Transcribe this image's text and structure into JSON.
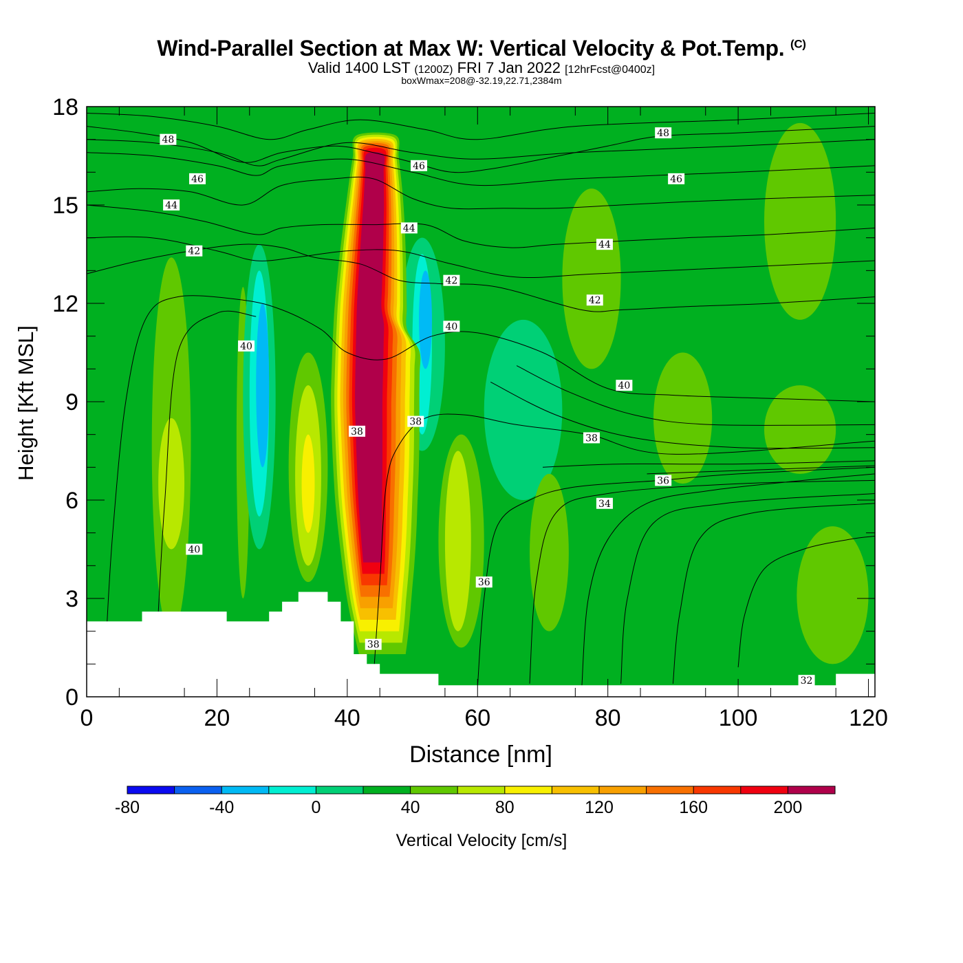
{
  "header": {
    "title": "Wind-Parallel Section at Max W: Vertical Velocity & Pot.Temp.",
    "copyright_mark": "(C)",
    "valid_prefix": "Valid 1400 LST",
    "valid_zulu": "(1200Z)",
    "valid_date": "FRI 7 Jan 2022",
    "forecast_info": "[12hrFcst@0400z]",
    "box_wmax": "boxWmax=208@-32.19,22.71,2384m"
  },
  "colorbar": {
    "title": "Vertical Velocity [cm/s]",
    "colors": [
      "#0a0af0",
      "#0a60f0",
      "#00baf5",
      "#00efd2",
      "#00d076",
      "#00b020",
      "#60c800",
      "#b8e800",
      "#f8f000",
      "#f8c000",
      "#f8a000",
      "#f87000",
      "#f83800",
      "#f00010",
      "#b0004a"
    ],
    "tick_labels": [
      "-80",
      "-40",
      "0",
      "40",
      "80",
      "120",
      "160",
      "200"
    ]
  },
  "chart_data": {
    "type": "heatmap",
    "xlabel": "Distance [nm]",
    "ylabel": "Height [Kft MSL]",
    "xlim": [
      0,
      121
    ],
    "ylim": [
      0,
      18
    ],
    "x_ticks": [
      0,
      20,
      40,
      60,
      80,
      100,
      120
    ],
    "y_ticks": [
      0,
      3,
      6,
      9,
      12,
      15,
      18
    ],
    "grid": false,
    "fill_variable": "Vertical Velocity [cm/s]",
    "contour_variable": "Pot.Temp.",
    "background_level_cm_s": 0,
    "velocity_features": [
      {
        "x": [
          10,
          16
        ],
        "y": [
          1.9,
          13.4
        ],
        "w_cm_s": 20
      },
      {
        "x": [
          11,
          15
        ],
        "y": [
          4.5,
          8.5
        ],
        "w_cm_s": 40
      },
      {
        "x": [
          23,
          25
        ],
        "y": [
          3,
          12.5
        ],
        "w_cm_s": 20
      },
      {
        "x": [
          24,
          29
        ],
        "y": [
          4.5,
          13.8
        ],
        "w_cm_s": -20
      },
      {
        "x": [
          25,
          28
        ],
        "y": [
          5.5,
          13
        ],
        "w_cm_s": -40
      },
      {
        "x": [
          26,
          28
        ],
        "y": [
          7,
          12
        ],
        "w_cm_s": -60
      },
      {
        "x": [
          31,
          37
        ],
        "y": [
          3.5,
          10.5
        ],
        "w_cm_s": 20
      },
      {
        "x": [
          32,
          36
        ],
        "y": [
          4,
          9.5
        ],
        "w_cm_s": 40
      },
      {
        "x": [
          33,
          35
        ],
        "y": [
          5,
          8
        ],
        "w_cm_s": 60
      },
      {
        "x": [
          48,
          55
        ],
        "y": [
          7.5,
          14
        ],
        "w_cm_s": -20
      },
      {
        "x": [
          50,
          53
        ],
        "y": [
          8,
          13.5
        ],
        "w_cm_s": -40
      },
      {
        "x": [
          51,
          53
        ],
        "y": [
          10,
          13
        ],
        "w_cm_s": -60
      },
      {
        "x": [
          54,
          61
        ],
        "y": [
          1.5,
          8
        ],
        "w_cm_s": 20
      },
      {
        "x": [
          55,
          59
        ],
        "y": [
          2,
          7.5
        ],
        "w_cm_s": 40
      },
      {
        "x": [
          61,
          73
        ],
        "y": [
          6,
          11.5
        ],
        "w_cm_s": -20
      },
      {
        "x": [
          68,
          74
        ],
        "y": [
          2,
          6.8
        ],
        "w_cm_s": 20
      },
      {
        "x": [
          73,
          82
        ],
        "y": [
          10,
          15.5
        ],
        "w_cm_s": 20
      },
      {
        "x": [
          87,
          96
        ],
        "y": [
          6.5,
          10.5
        ],
        "w_cm_s": 20
      },
      {
        "x": [
          104,
          115
        ],
        "y": [
          6.8,
          9.5
        ],
        "w_cm_s": 20
      },
      {
        "x": [
          109,
          120
        ],
        "y": [
          1,
          5.2
        ],
        "w_cm_s": 20
      },
      {
        "x": [
          104,
          115
        ],
        "y": [
          11.5,
          17.5
        ],
        "w_cm_s": 20
      }
    ],
    "updraft_core": {
      "w_max_cm_s": 208,
      "top_kft": 17.2,
      "levels_cm_s": [
        20,
        40,
        60,
        80,
        100,
        120,
        140,
        160,
        180,
        200
      ],
      "band_width_kft": [
        0.4,
        0.75,
        1.1,
        1.45,
        1.8,
        2.1,
        2.45,
        2.9,
        3.6,
        5.2
      ],
      "axis": [
        [
          44,
          1.3
        ],
        [
          43.2,
          3
        ],
        [
          42.5,
          6
        ],
        [
          42.2,
          9
        ],
        [
          42.5,
          12
        ],
        [
          43.2,
          15
        ],
        [
          43.5,
          17.2
        ]
      ],
      "band_halfwidth_nm": [
        6.3,
        5.6,
        5,
        4.4,
        3.8,
        3.2,
        2.6,
        2.0,
        1.4,
        0.8
      ]
    },
    "terrain_kft": [
      [
        0,
        2.3
      ],
      [
        8.5,
        2.3
      ],
      [
        8.5,
        2.6
      ],
      [
        21.5,
        2.6
      ],
      [
        21.5,
        2.3
      ],
      [
        28,
        2.3
      ],
      [
        28,
        2.6
      ],
      [
        30,
        2.6
      ],
      [
        30,
        2.9
      ],
      [
        32.5,
        2.9
      ],
      [
        32.5,
        3.2
      ],
      [
        37,
        3.2
      ],
      [
        37,
        2.9
      ],
      [
        39,
        2.9
      ],
      [
        39,
        2.3
      ],
      [
        41,
        2.3
      ],
      [
        41,
        1.3
      ],
      [
        43,
        1.3
      ],
      [
        43,
        1.0
      ],
      [
        45,
        1.0
      ],
      [
        45,
        0.7
      ],
      [
        54,
        0.7
      ],
      [
        54,
        0.35
      ],
      [
        115,
        0.35
      ],
      [
        115,
        0.7
      ],
      [
        121,
        0.7
      ]
    ],
    "theta_contours": [
      {
        "label": "32",
        "points": [
          [
            100,
            0.9
          ],
          [
            101,
            2.5
          ],
          [
            104,
            3.9
          ],
          [
            110,
            4.5
          ],
          [
            117,
            4.8
          ],
          [
            121,
            4.9
          ]
        ],
        "label_at": [
          110.5,
          0.5
        ]
      },
      {
        "label": "34",
        "points": [
          [
            76,
            0.3
          ],
          [
            77,
            3
          ],
          [
            80,
            4.8
          ],
          [
            86,
            5.9
          ],
          [
            96,
            6.3
          ],
          [
            110,
            6.6
          ],
          [
            121,
            6.8
          ]
        ],
        "label_at": [
          79.5,
          5.9
        ]
      },
      {
        "label": "36",
        "points": [
          [
            60,
            0.3
          ],
          [
            61,
            3
          ],
          [
            63,
            5.2
          ],
          [
            68,
            6.0
          ],
          [
            75,
            6.4
          ],
          [
            88,
            6.6
          ],
          [
            100,
            6.8
          ],
          [
            121,
            7.0
          ]
        ],
        "label_at": [
          61,
          3.5
        ]
      },
      {
        "label": "38",
        "points": [
          [
            44,
            0.5
          ],
          [
            45,
            3.5
          ],
          [
            46,
            6.5
          ],
          [
            48,
            7.7
          ],
          [
            52,
            8.5
          ],
          [
            58,
            8.6
          ],
          [
            66,
            8.3
          ],
          [
            77,
            8.0
          ],
          [
            90,
            7.4
          ],
          [
            121,
            7.8
          ]
        ],
        "label_at": [
          50.5,
          8.4
        ]
      },
      {
        "label": "40",
        "points": [
          [
            3,
            1.8
          ],
          [
            4,
            5
          ],
          [
            6,
            9
          ],
          [
            9,
            11.5
          ],
          [
            14,
            12.2
          ],
          [
            24,
            12.1
          ],
          [
            30,
            11.8
          ],
          [
            36,
            11.2
          ],
          [
            40,
            10.5
          ],
          [
            46,
            10.3
          ],
          [
            53,
            11.0
          ],
          [
            60,
            11.1
          ],
          [
            70,
            10.5
          ],
          [
            80,
            9.4
          ],
          [
            90,
            9.2
          ],
          [
            105,
            9.1
          ],
          [
            121,
            9.0
          ]
        ],
        "label_at": [
          24.5,
          10.7
        ]
      },
      {
        "label": "42",
        "points": [
          [
            0,
            12.9
          ],
          [
            8,
            13.3
          ],
          [
            16,
            13.6
          ],
          [
            24,
            13.8
          ],
          [
            30,
            13.7
          ],
          [
            35,
            13.4
          ],
          [
            42,
            13.2
          ],
          [
            48,
            12.7
          ],
          [
            54,
            12.6
          ],
          [
            63,
            12.5
          ],
          [
            76,
            11.8
          ],
          [
            82,
            11.8
          ],
          [
            92,
            11.9
          ],
          [
            105,
            12.0
          ],
          [
            121,
            12.2
          ]
        ],
        "label_at": [
          16.5,
          13.6
        ]
      },
      {
        "label": "44",
        "points": [
          [
            0,
            15.0
          ],
          [
            10,
            14.8
          ],
          [
            18,
            14.5
          ],
          [
            26,
            14.1
          ],
          [
            30,
            14.3
          ],
          [
            36,
            14.4
          ],
          [
            44,
            14.4
          ],
          [
            52,
            14.4
          ],
          [
            58,
            13.9
          ],
          [
            65,
            13.7
          ],
          [
            72,
            13.8
          ],
          [
            82,
            13.9
          ],
          [
            92,
            14.0
          ],
          [
            105,
            14.1
          ],
          [
            121,
            14.3
          ]
        ],
        "label_at": [
          13,
          15.0
        ]
      },
      {
        "label": "46",
        "points": [
          [
            0,
            15.4
          ],
          [
            8,
            15.5
          ],
          [
            16,
            15.4
          ],
          [
            24,
            15.0
          ],
          [
            30,
            15.6
          ],
          [
            38,
            15.8
          ],
          [
            44,
            15.8
          ],
          [
            50,
            15.2
          ],
          [
            56,
            14.9
          ],
          [
            64,
            14.9
          ],
          [
            72,
            14.9
          ],
          [
            82,
            15.0
          ],
          [
            92,
            15.1
          ],
          [
            105,
            15.2
          ],
          [
            121,
            15.3
          ]
        ],
        "label_at": [
          17,
          15.8
        ]
      },
      {
        "label": "48",
        "points": [
          [
            0,
            17.4
          ],
          [
            8,
            17.2
          ],
          [
            16,
            16.9
          ],
          [
            24,
            16.3
          ],
          [
            30,
            16.6
          ],
          [
            38,
            16.8
          ],
          [
            44,
            16.6
          ],
          [
            50,
            16.3
          ],
          [
            56,
            16.0
          ],
          [
            62,
            16.1
          ],
          [
            70,
            16.4
          ],
          [
            80,
            16.8
          ],
          [
            88,
            17.1
          ],
          [
            100,
            17.2
          ],
          [
            121,
            17.4
          ]
        ],
        "label_at": [
          12.5,
          17.0
        ]
      }
    ],
    "extra_theta_labels": [
      {
        "label": "48",
        "at": [
          88.5,
          17.2
        ]
      },
      {
        "label": "46",
        "at": [
          51,
          16.2
        ]
      },
      {
        "label": "46",
        "at": [
          90.5,
          15.8
        ]
      },
      {
        "label": "44",
        "at": [
          49.5,
          14.3
        ]
      },
      {
        "label": "44",
        "at": [
          79.5,
          13.8
        ]
      },
      {
        "label": "42",
        "at": [
          56,
          12.7
        ]
      },
      {
        "label": "42",
        "at": [
          78,
          12.1
        ]
      },
      {
        "label": "40",
        "at": [
          56,
          11.3
        ]
      },
      {
        "label": "40",
        "at": [
          82.5,
          9.5
        ]
      },
      {
        "label": "40",
        "at": [
          16.5,
          4.5
        ]
      },
      {
        "label": "38",
        "at": [
          41.5,
          8.1
        ]
      },
      {
        "label": "38",
        "at": [
          44,
          1.6
        ]
      },
      {
        "label": "38",
        "at": [
          77.5,
          7.9
        ]
      },
      {
        "label": "36",
        "at": [
          88.5,
          6.6
        ]
      }
    ],
    "extra_theta_lines": [
      [
        [
          0,
          16.6
        ],
        [
          10,
          16.5
        ],
        [
          20,
          16.2
        ],
        [
          26,
          15.9
        ],
        [
          30,
          16.2
        ],
        [
          40,
          16.4
        ],
        [
          50,
          16.0
        ],
        [
          60,
          15.6
        ],
        [
          75,
          15.8
        ],
        [
          100,
          16.0
        ],
        [
          121,
          16.2
        ]
      ],
      [
        [
          0,
          17.0
        ],
        [
          10,
          16.9
        ],
        [
          20,
          16.6
        ],
        [
          26,
          16.2
        ],
        [
          30,
          16.4
        ],
        [
          40,
          16.9
        ],
        [
          50,
          16.6
        ],
        [
          60,
          16.4
        ],
        [
          75,
          16.6
        ],
        [
          100,
          16.8
        ],
        [
          121,
          17.0
        ]
      ],
      [
        [
          0,
          14.0
        ],
        [
          10,
          14.0
        ],
        [
          20,
          13.6
        ],
        [
          26,
          13.3
        ],
        [
          32,
          13.4
        ],
        [
          40,
          13.6
        ],
        [
          48,
          13.6
        ],
        [
          56,
          13.2
        ],
        [
          66,
          12.8
        ],
        [
          78,
          12.9
        ],
        [
          100,
          13.1
        ],
        [
          121,
          13.3
        ]
      ],
      [
        [
          0,
          17.8
        ],
        [
          10,
          17.7
        ],
        [
          20,
          17.4
        ],
        [
          28,
          17.0
        ],
        [
          34,
          17.3
        ],
        [
          42,
          17.6
        ],
        [
          52,
          17.3
        ],
        [
          60,
          17.0
        ],
        [
          75,
          17.4
        ],
        [
          100,
          17.6
        ],
        [
          121,
          17.8
        ]
      ],
      [
        [
          66,
          10.1
        ],
        [
          74,
          9.3
        ],
        [
          84,
          8.6
        ],
        [
          96,
          8.3
        ],
        [
          121,
          8.3
        ]
      ],
      [
        [
          62,
          9.6
        ],
        [
          72,
          8.6
        ],
        [
          84,
          7.9
        ],
        [
          100,
          7.6
        ],
        [
          121,
          7.6
        ]
      ],
      [
        [
          70,
          7.0
        ],
        [
          82,
          7.1
        ],
        [
          100,
          7.1
        ],
        [
          121,
          7.2
        ]
      ],
      [
        [
          86,
          6.8
        ],
        [
          100,
          6.9
        ],
        [
          121,
          7.05
        ]
      ],
      [
        [
          90,
          0.4
        ],
        [
          91,
          2.5
        ],
        [
          94,
          4.8
        ],
        [
          102,
          5.6
        ],
        [
          121,
          5.9
        ]
      ],
      [
        [
          82,
          0.4
        ],
        [
          83,
          3
        ],
        [
          87,
          5.3
        ],
        [
          98,
          5.9
        ],
        [
          121,
          6.2
        ]
      ],
      [
        [
          68,
          0.4
        ],
        [
          69,
          3.5
        ],
        [
          72,
          5.6
        ],
        [
          80,
          6.2
        ],
        [
          100,
          6.5
        ],
        [
          121,
          6.6
        ]
      ],
      [
        [
          11,
          2.6
        ],
        [
          12,
          6
        ],
        [
          14,
          10.5
        ],
        [
          20,
          11.7
        ],
        [
          26,
          11.6
        ]
      ]
    ]
  }
}
